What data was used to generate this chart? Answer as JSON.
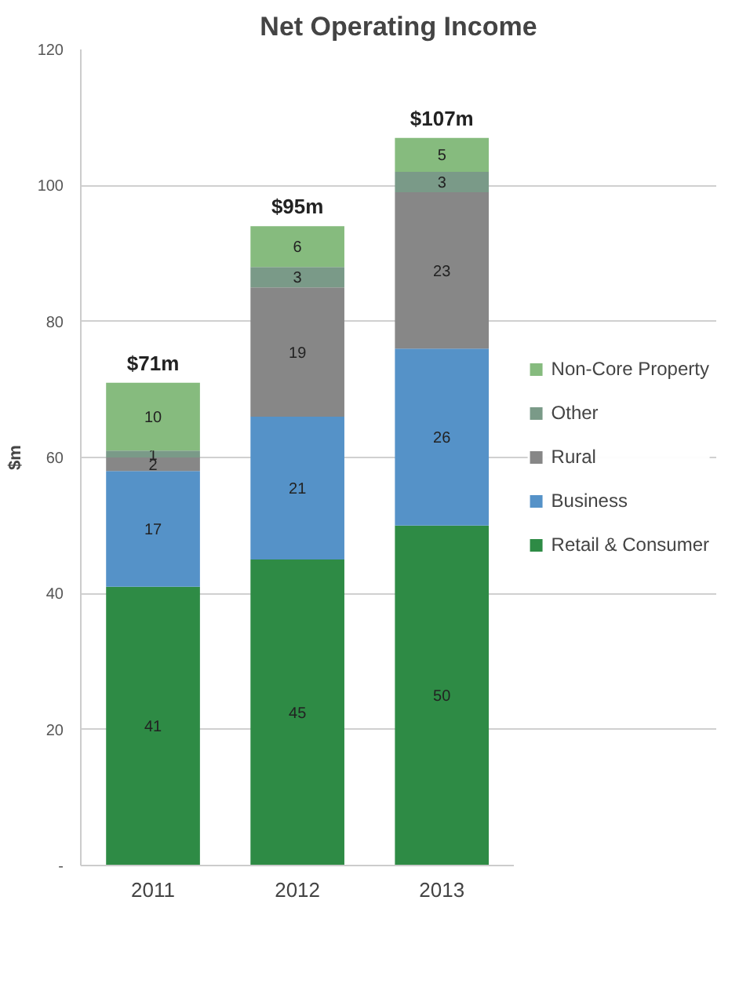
{
  "chart_data": {
    "type": "bar",
    "title": "Net Operating Income",
    "ylabel": "$m",
    "stacked": true,
    "categories": [
      "2011",
      "2012",
      "2013"
    ],
    "series": [
      {
        "name": "Retail & Consumer",
        "color": "#2e8b45",
        "values": [
          41,
          45,
          50
        ]
      },
      {
        "name": "Business",
        "color": "#5592c8",
        "values": [
          17,
          21,
          26
        ]
      },
      {
        "name": "Rural",
        "color": "#878787",
        "values": [
          2,
          19,
          23
        ]
      },
      {
        "name": "Other",
        "color": "#7a9a88",
        "values": [
          1,
          3,
          3
        ]
      },
      {
        "name": "Non-Core Property",
        "color": "#86bb7e",
        "values": [
          10,
          6,
          5
        ]
      }
    ],
    "totals": [
      "$71m",
      "$95m",
      "$107m"
    ],
    "ylim": [
      0,
      120
    ],
    "yticks": [
      {
        "value": 0,
        "label": "-"
      },
      20,
      40,
      60,
      80,
      100,
      120
    ],
    "data_labels": true,
    "grid": "y",
    "legend": "right"
  }
}
